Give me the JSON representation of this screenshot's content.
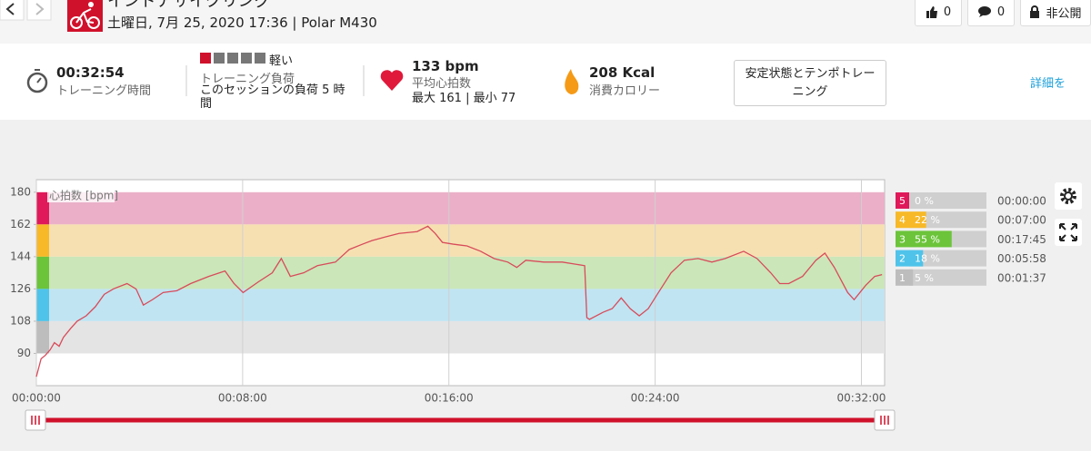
{
  "header": {
    "title": "インドアサイクリング",
    "subtitle": "土曜日, 7月 25, 2020 17:36 | Polar M430",
    "likes": 0,
    "comments": 0,
    "privacy": "非公開"
  },
  "summary": {
    "duration": "00:32:54",
    "duration_label": "トレーニング時間",
    "load_level": "軽い",
    "load_label": "トレーニング負荷",
    "load_text": "このセッションの負荷 5 時間",
    "avg_hr": "133 bpm",
    "avg_hr_label": "平均心拍数",
    "hr_range": "最大 161 | 最小 77",
    "calories": "208 Kcal",
    "calories_label": "消費カロリー",
    "benefit": "安定状態とテンポトレーニング",
    "details_link": "詳細を"
  },
  "chart_data": {
    "type": "line",
    "y_label": "心拍数 [bpm]",
    "color": "#d84b5a",
    "grid": true,
    "x": [
      0,
      11,
      21,
      32,
      42,
      53,
      63,
      80,
      95,
      116,
      137,
      158,
      179,
      211,
      232,
      249,
      270,
      295,
      327,
      359,
      401,
      439,
      460,
      481,
      517,
      549,
      570,
      591,
      622,
      654,
      696,
      728,
      759,
      781,
      812,
      844,
      886,
      911,
      928,
      945,
      970,
      1002,
      1034,
      1065,
      1097,
      1118,
      1139,
      1181,
      1224,
      1276,
      1281,
      1287,
      1319,
      1340,
      1361,
      1382,
      1403,
      1424,
      1445,
      1477,
      1508,
      1540,
      1572,
      1603,
      1646,
      1677,
      1709,
      1730,
      1751,
      1783,
      1814,
      1835,
      1857,
      1888,
      1903,
      1930,
      1951,
      1968
    ],
    "values": [
      77,
      87,
      89,
      92,
      96,
      94,
      99,
      104,
      108,
      111,
      116,
      123,
      126,
      129,
      126,
      117,
      120,
      124,
      125,
      129,
      133,
      136,
      129,
      124,
      130,
      135,
      143,
      133,
      135,
      139,
      141,
      148,
      151,
      153,
      155,
      157,
      158,
      161,
      157,
      152,
      151,
      150,
      147,
      143,
      141,
      138,
      142,
      141,
      141,
      139,
      110,
      109,
      113,
      115,
      121,
      115,
      111,
      115,
      123,
      135,
      142,
      143,
      141,
      143,
      147,
      143,
      135,
      129,
      129,
      133,
      142,
      146,
      138,
      124,
      120,
      128,
      133,
      134
    ],
    "xlim": [
      0,
      1974
    ],
    "xticks": [
      {
        "value": 0,
        "label": "00:00:00"
      },
      {
        "value": 480,
        "label": "00:08:00"
      },
      {
        "value": 960,
        "label": "00:16:00"
      },
      {
        "value": 1440,
        "label": "00:24:00"
      },
      {
        "value": 1920,
        "label": "00:32:00"
      }
    ],
    "ylim": [
      72,
      187
    ],
    "yticks": [
      90,
      108,
      126,
      144,
      162,
      180
    ],
    "zones": [
      {
        "name": "5",
        "lower": 162,
        "upper": 180,
        "color": "#e0195a",
        "band_color": "#ebb0c8",
        "percent": 0,
        "percent_label": "0 %",
        "time": "00:00:00"
      },
      {
        "name": "4",
        "lower": 144,
        "upper": 162,
        "color": "#f7b928",
        "band_color": "#f6e0b2",
        "percent": 22,
        "percent_label": "22 %",
        "time": "00:07:00"
      },
      {
        "name": "3",
        "lower": 126,
        "upper": 144,
        "color": "#6cc43a",
        "band_color": "#cbe6b9",
        "percent": 55,
        "percent_label": "55 %",
        "time": "00:17:45"
      },
      {
        "name": "2",
        "lower": 108,
        "upper": 126,
        "color": "#4fc3ea",
        "band_color": "#c0e4f2",
        "percent": 18,
        "percent_label": "18 %",
        "time": "00:05:58"
      },
      {
        "name": "1",
        "lower": 90,
        "upper": 108,
        "color": "#bdbdbd",
        "band_color": "#e4e4e4",
        "percent": 5,
        "percent_label": "5 %",
        "time": "00:01:37"
      }
    ]
  }
}
